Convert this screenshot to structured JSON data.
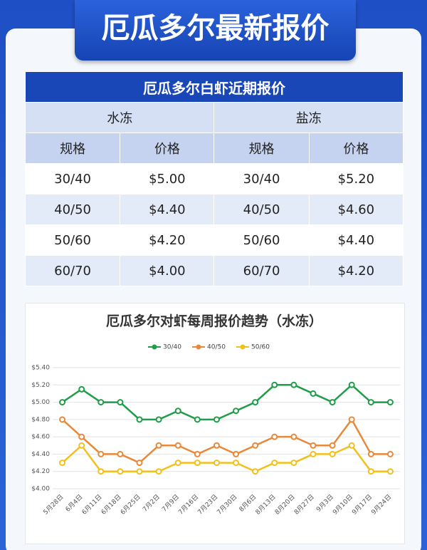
{
  "header": {
    "title": "厄瓜多尔最新报价"
  },
  "table": {
    "title": "厄瓜多尔白虾近期报价",
    "groups": [
      "水冻",
      "盐冻"
    ],
    "columns": [
      "规格",
      "价格",
      "规格",
      "价格"
    ],
    "rows": [
      [
        "30/40",
        "$5.00",
        "30/40",
        "$5.20"
      ],
      [
        "40/50",
        "$4.40",
        "40/50",
        "$4.60"
      ],
      [
        "50/60",
        "$4.20",
        "50/60",
        "$4.40"
      ],
      [
        "60/70",
        "$4.00",
        "60/70",
        "$4.20"
      ]
    ]
  },
  "chart_data": {
    "type": "line",
    "title": "厄瓜多尔对虾每周报价趋势（水冻）",
    "categories": [
      "5月28日",
      "6月4日",
      "6月11日",
      "6月18日",
      "6月25日",
      "7月2日",
      "7月9日",
      "7月16日",
      "7月23日",
      "7月30日",
      "8月6日",
      "8月13日",
      "8月20日",
      "8月27日",
      "9月3日",
      "9月10日",
      "9月17日",
      "9月24日"
    ],
    "series": [
      {
        "name": "30/40",
        "color": "#1e9e48",
        "values": [
          5.0,
          5.15,
          5.0,
          5.0,
          4.8,
          4.8,
          4.9,
          4.8,
          4.8,
          4.9,
          5.0,
          5.2,
          5.2,
          5.1,
          5.0,
          5.2,
          5.0,
          5.0
        ]
      },
      {
        "name": "40/50",
        "color": "#e8883a",
        "values": [
          4.8,
          4.6,
          4.4,
          4.4,
          4.3,
          4.5,
          4.5,
          4.4,
          4.5,
          4.4,
          4.5,
          4.6,
          4.6,
          4.5,
          4.5,
          4.8,
          4.4,
          4.4
        ]
      },
      {
        "name": "50/60",
        "color": "#f2c01e",
        "values": [
          4.3,
          4.5,
          4.2,
          4.2,
          4.2,
          4.2,
          4.3,
          4.3,
          4.3,
          4.3,
          4.2,
          4.3,
          4.3,
          4.4,
          4.4,
          4.5,
          4.2,
          4.2
        ]
      }
    ],
    "ylim": [
      4.0,
      5.4
    ],
    "yticks": [
      {
        "value": 4.0,
        "label": "$4.00"
      },
      {
        "value": 4.2,
        "label": "$4.20"
      },
      {
        "value": 4.4,
        "label": "$4.40"
      },
      {
        "value": 4.6,
        "label": "$4.60"
      },
      {
        "value": 4.8,
        "label": "$4.80"
      },
      {
        "value": 5.0,
        "label": "$5.00"
      },
      {
        "value": 5.2,
        "label": "$5.20"
      },
      {
        "value": 5.4,
        "label": "$5.40"
      }
    ],
    "grid": true,
    "legend": "top"
  }
}
